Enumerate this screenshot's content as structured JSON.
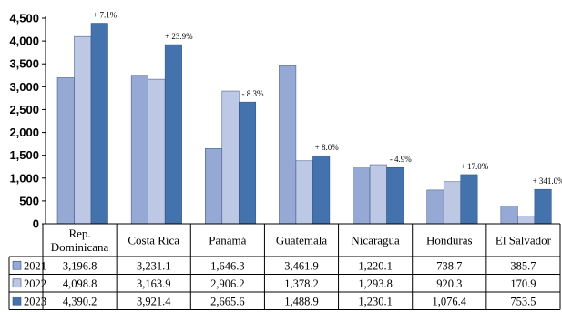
{
  "chart_data": {
    "type": "bar",
    "title": "",
    "xlabel": "",
    "ylabel": "",
    "ylim": [
      0,
      4500
    ],
    "yticks": [
      "0",
      "500",
      "1,000",
      "1,500",
      "2,000",
      "2,500",
      "3,000",
      "3,500",
      "4,000",
      "4,500"
    ],
    "categories": [
      [
        "Rep.",
        "Dominicana"
      ],
      [
        "Costa Rica"
      ],
      [
        "Panamá"
      ],
      [
        "Guatemala"
      ],
      [
        "Nicaragua"
      ],
      [
        "Honduras"
      ],
      [
        "El Salvador"
      ]
    ],
    "series": [
      {
        "name": "2021",
        "color": "#95a9d4",
        "values": [
          3196.8,
          3231.1,
          1646.3,
          3461.9,
          1220.1,
          738.7,
          385.7
        ],
        "labels": [
          "3,196.8",
          "3,231.1",
          "1,646.3",
          "3,461.9",
          "1,220.1",
          "738.7",
          "385.7"
        ]
      },
      {
        "name": "2022",
        "color": "#bcc8e4",
        "values": [
          4098.8,
          3163.9,
          2906.2,
          1378.2,
          1293.8,
          920.3,
          170.9
        ],
        "labels": [
          "4,098.8",
          "3,163.9",
          "2,906.2",
          "1,378.2",
          "1,293.8",
          "920.3",
          "170.9"
        ]
      },
      {
        "name": "2023",
        "color": "#4472ad",
        "values": [
          4390.2,
          3921.4,
          2665.6,
          1488.9,
          1230.1,
          1076.4,
          753.5
        ],
        "labels": [
          "4,390.2",
          "3,921.4",
          "2,665.6",
          "1,488.9",
          "1,230.1",
          "1,076.4",
          "753.5"
        ]
      }
    ],
    "annotations": [
      "+ 7.1%",
      "+ 23.9%",
      "- 8.3%",
      "+ 8.0%",
      "- 4.9%",
      "+ 17.0%",
      "+ 341.0%"
    ],
    "grid": false,
    "legend": "table"
  }
}
